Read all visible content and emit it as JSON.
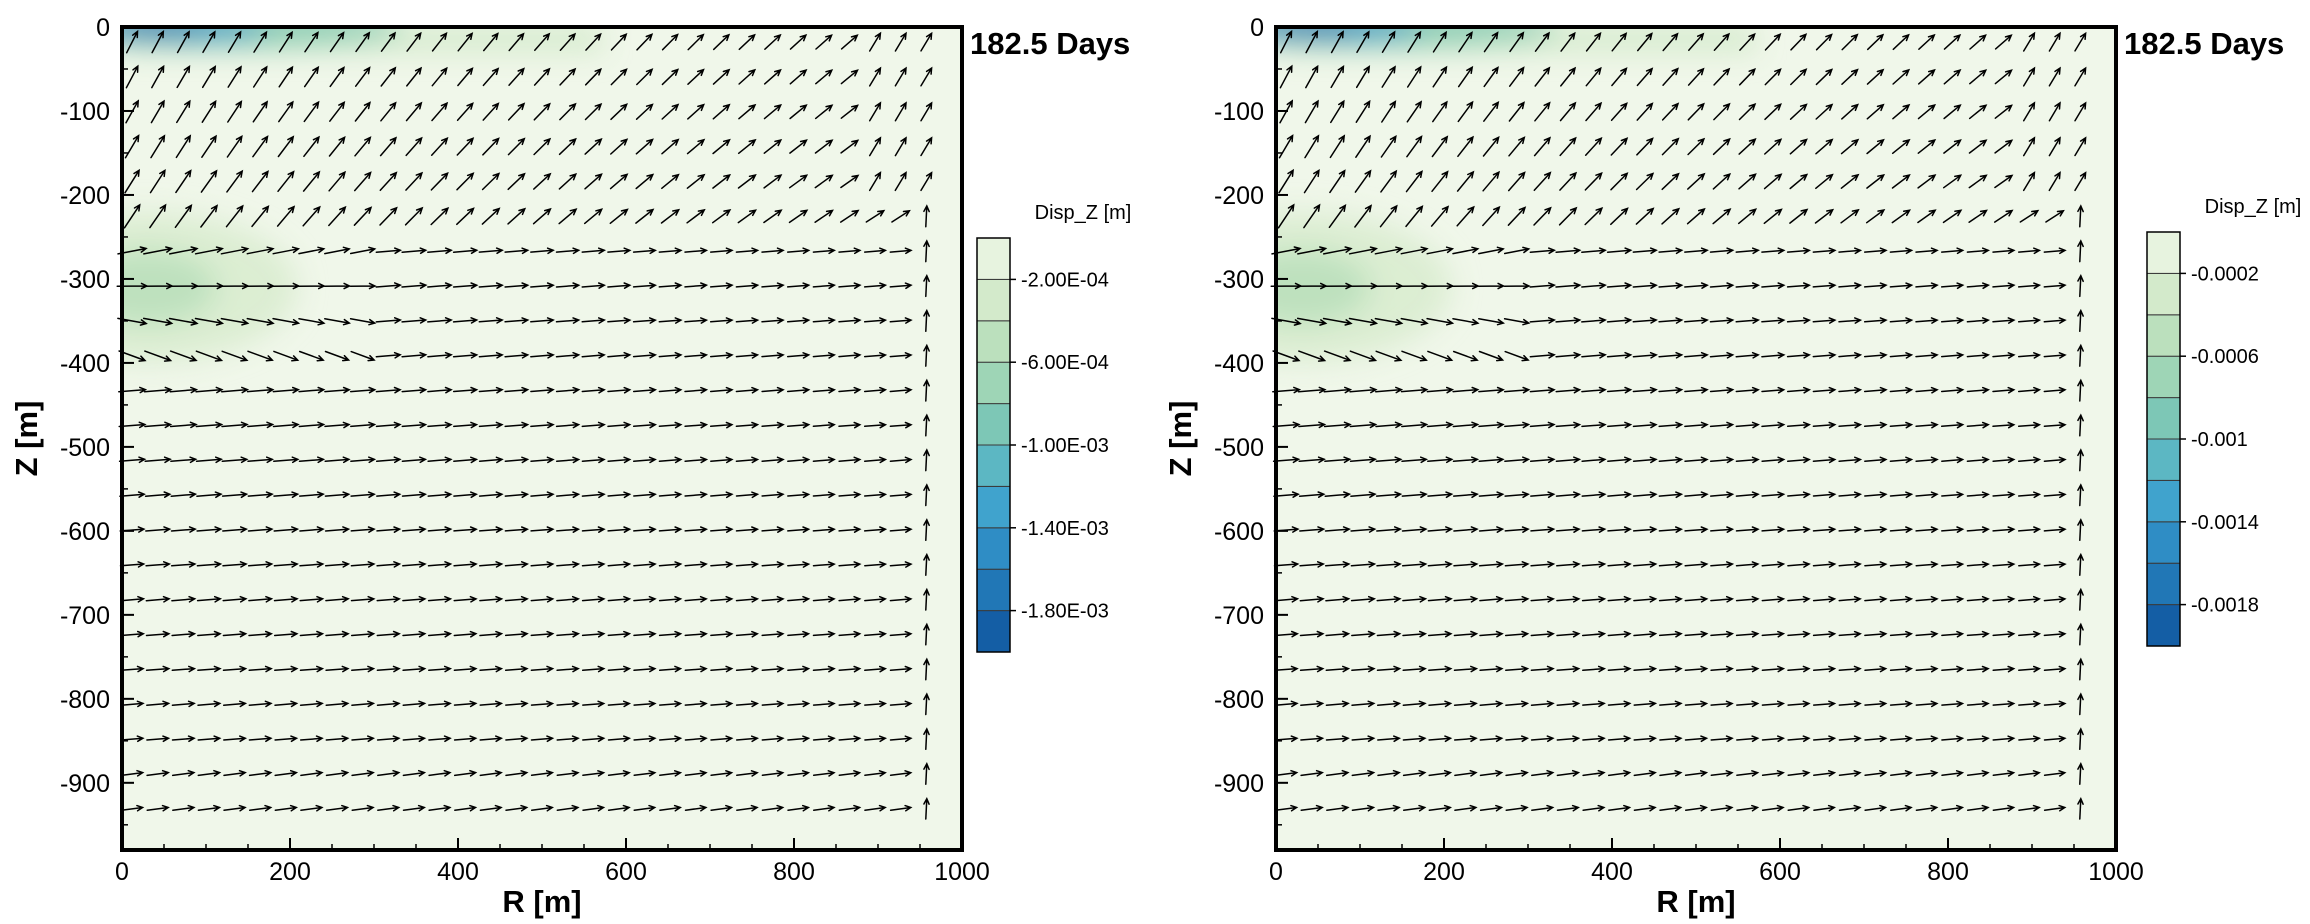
{
  "chart_data": [
    {
      "type": "heatmap",
      "subtype": "contour with displacement vector field",
      "annotation": "182.5 Days",
      "xlabel": "R [m]",
      "ylabel": "Z [m]",
      "xlim": [
        0,
        1000
      ],
      "ylim": [
        -980,
        0
      ],
      "xticks": [
        0,
        200,
        400,
        600,
        800,
        1000
      ],
      "xtick_labels": [
        "0",
        "200",
        "400",
        "600",
        "800",
        "1000"
      ],
      "yticks": [
        0,
        -100,
        -200,
        -300,
        -400,
        -500,
        -600,
        -700,
        -800,
        -900
      ],
      "ytick_labels": [
        "0",
        "-100",
        "-200",
        "-300",
        "-400",
        "-500",
        "-600",
        "-700",
        "-800",
        "-900"
      ],
      "field": "Disp_Z",
      "legend_title": "Disp_Z [m]",
      "colorbar_range": [
        -0.002,
        0.0
      ],
      "colorbar_levels": [
        -0.002,
        -0.0018,
        -0.0016,
        -0.0014,
        -0.0012,
        -0.001,
        -0.0008,
        -0.0006,
        -0.0004,
        -0.0002,
        0.0
      ],
      "colorbar_tick_values": [
        -0.0002,
        -0.0006,
        -0.001,
        -0.0014,
        -0.0018
      ],
      "colorbar_tick_labels": [
        "-2.00E-04",
        "-6.00E-04",
        "-1.00E-03",
        "-1.40E-03",
        "-1.80E-03"
      ],
      "colormap": [
        "#f0f7ea",
        "#dcedd1",
        "#c3e3bf",
        "#a3d7b6",
        "#7fc8b5",
        "#5ab6c4",
        "#3ba0cf",
        "#2b87c2",
        "#1c6eb0",
        "#0d519c"
      ],
      "min_region": {
        "r": 60,
        "z": 0,
        "value": -0.0018
      },
      "secondary_region": {
        "r": 30,
        "z": -310,
        "value": -0.0005
      },
      "legend_position": "right"
    },
    {
      "type": "heatmap",
      "subtype": "contour with displacement vector field",
      "annotation": "182.5 Days",
      "xlabel": "R [m]",
      "ylabel": "Z [m]",
      "xlim": [
        0,
        1000
      ],
      "ylim": [
        -980,
        0
      ],
      "xticks": [
        0,
        200,
        400,
        600,
        800,
        1000
      ],
      "xtick_labels": [
        "0",
        "200",
        "400",
        "600",
        "800",
        "1000"
      ],
      "yticks": [
        0,
        -100,
        -200,
        -300,
        -400,
        -500,
        -600,
        -700,
        -800,
        -900
      ],
      "ytick_labels": [
        "0",
        "-100",
        "-200",
        "-300",
        "-400",
        "-500",
        "-600",
        "-700",
        "-800",
        "-900"
      ],
      "field": "Disp_Z",
      "legend_title": "Disp_Z [m]",
      "colorbar_range": [
        -0.002,
        0.0
      ],
      "colorbar_levels": [
        -0.002,
        -0.0018,
        -0.0016,
        -0.0014,
        -0.0012,
        -0.001,
        -0.0008,
        -0.0006,
        -0.0004,
        -0.0002,
        0.0
      ],
      "colorbar_tick_values": [
        -0.0002,
        -0.0006,
        -0.001,
        -0.0014,
        -0.0018
      ],
      "colorbar_tick_labels": [
        "-0.0002",
        "-0.0006",
        "-0.001",
        "-0.0014",
        "-0.0018"
      ],
      "colormap": [
        "#f0f7ea",
        "#dcedd1",
        "#c3e3bf",
        "#a3d7b6",
        "#7fc8b5",
        "#5ab6c4",
        "#3ba0cf",
        "#2b87c2",
        "#1c6eb0",
        "#0d519c"
      ],
      "min_region": {
        "r": 60,
        "z": 0,
        "value": -0.0018
      },
      "secondary_region": {
        "r": 30,
        "z": -310,
        "value": -0.0005
      },
      "legend_position": "right"
    }
  ]
}
